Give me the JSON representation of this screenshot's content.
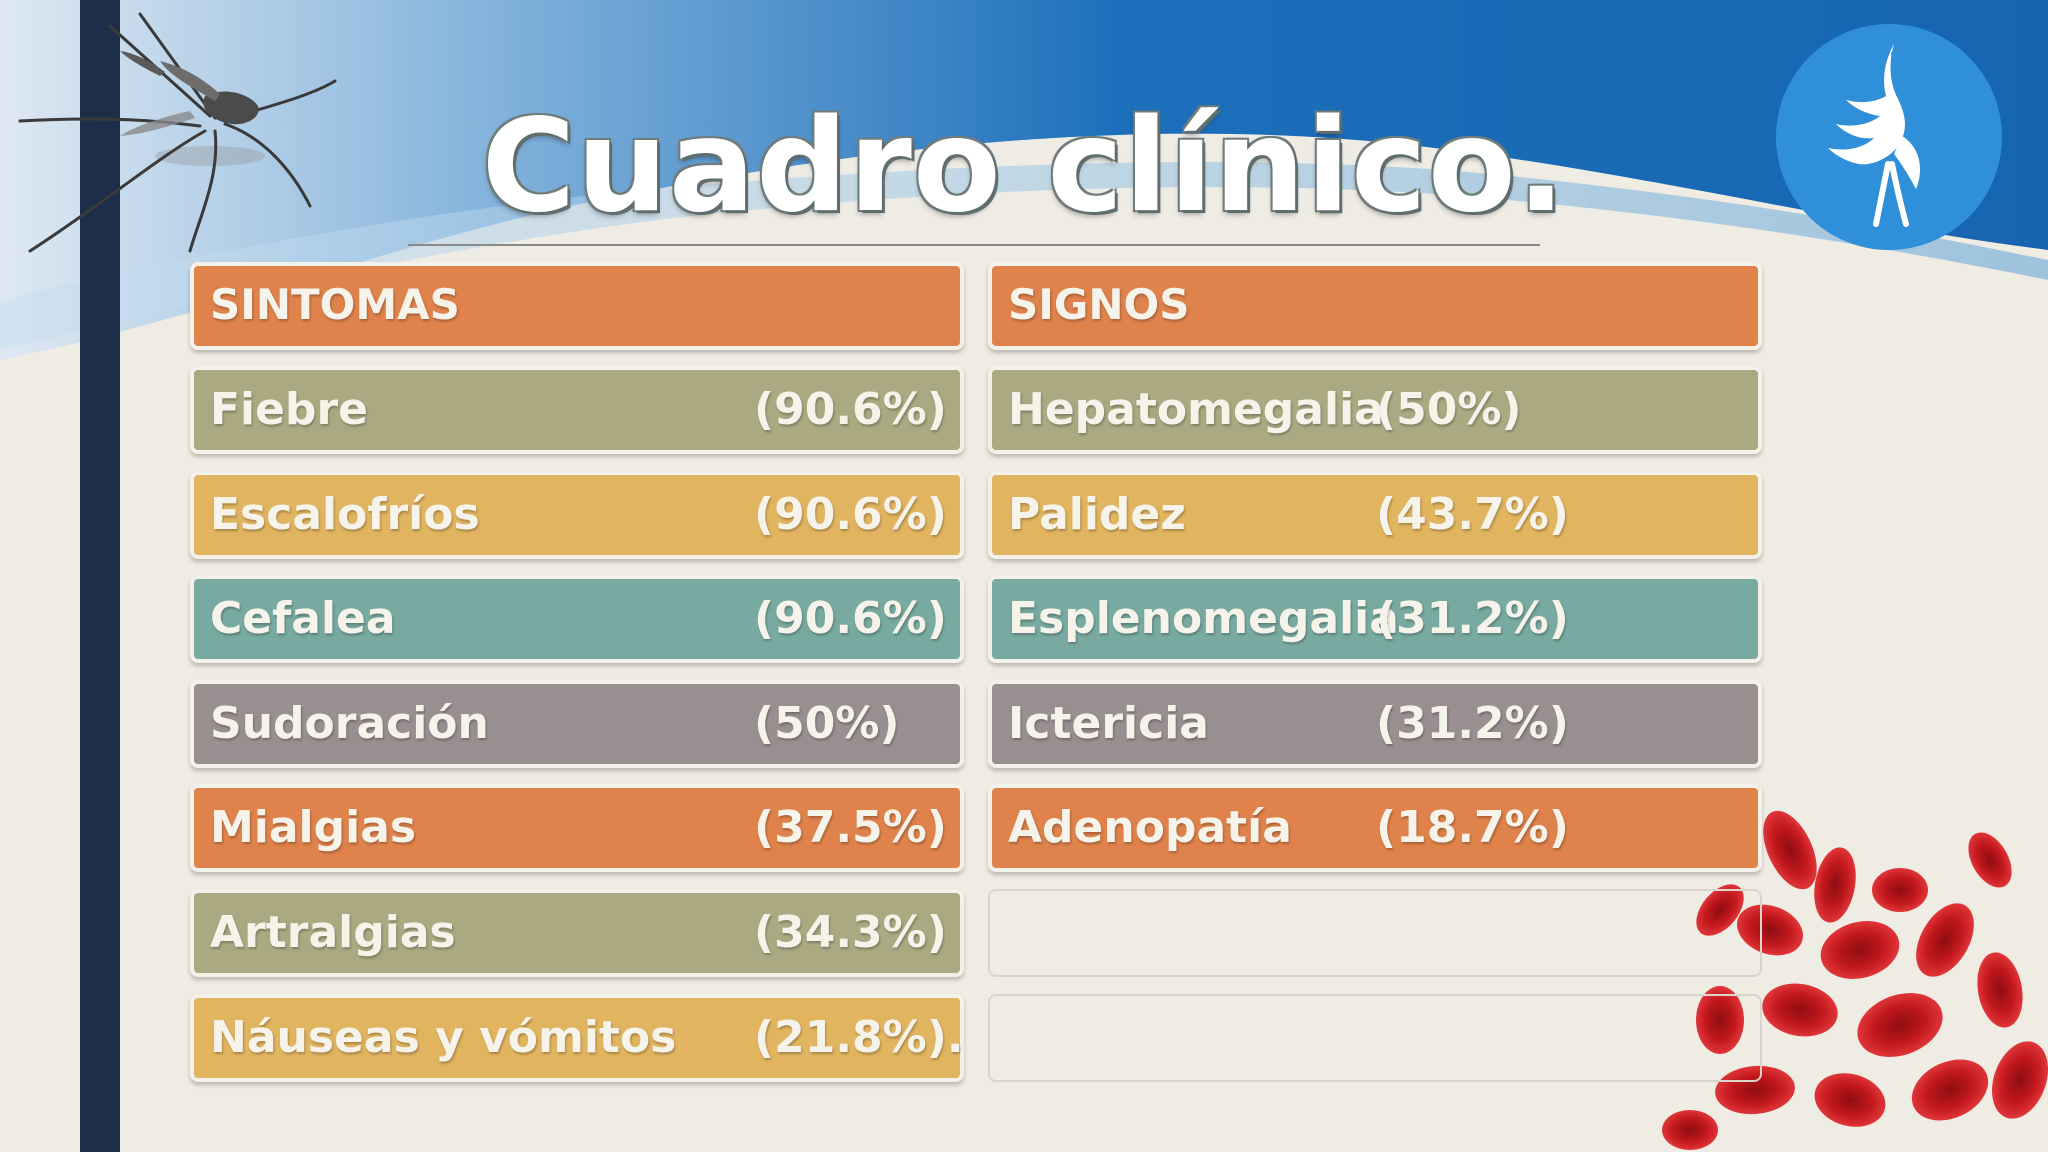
{
  "title": "Cuadro clínico.",
  "colors": {
    "orange": "#df824b",
    "olive": "#aaa982",
    "yellow": "#e1b45f",
    "teal": "#78aaa1",
    "gray": "#9a8f90",
    "banner_blue": "#1e73be",
    "logo_blue": "#2f8fd9"
  },
  "icons": {
    "logo": "crane-bird-logo-icon",
    "mosquito": "mosquito-illustration",
    "cells": "red-blood-cells-illustration"
  },
  "sintomas": {
    "header": "SINTOMAS",
    "rows": [
      {
        "name": "Fiebre",
        "pct": "(90.6%)"
      },
      {
        "name": "Escalofríos",
        "pct": "(90.6%)"
      },
      {
        "name": "Cefalea",
        "pct": "(90.6%)"
      },
      {
        "name": "Sudoración",
        "pct": "(50%)"
      },
      {
        "name": "Mialgias",
        "pct": "(37.5%)"
      },
      {
        "name": "Artralgias",
        "pct": "(34.3%)"
      },
      {
        "name": "Náuseas y vómitos",
        "pct": "(21.8%)."
      }
    ]
  },
  "signos": {
    "header": "SIGNOS",
    "rows": [
      {
        "name": "Hepatomegalia",
        "pct": "(50%)"
      },
      {
        "name": "Palidez",
        "pct": "(43.7%)"
      },
      {
        "name": "Esplenomegalia",
        "pct": "(31.2%)"
      },
      {
        "name": "Ictericia",
        "pct": "(31.2%)"
      },
      {
        "name": "Adenopatía",
        "pct": "(18.7%)"
      }
    ]
  }
}
